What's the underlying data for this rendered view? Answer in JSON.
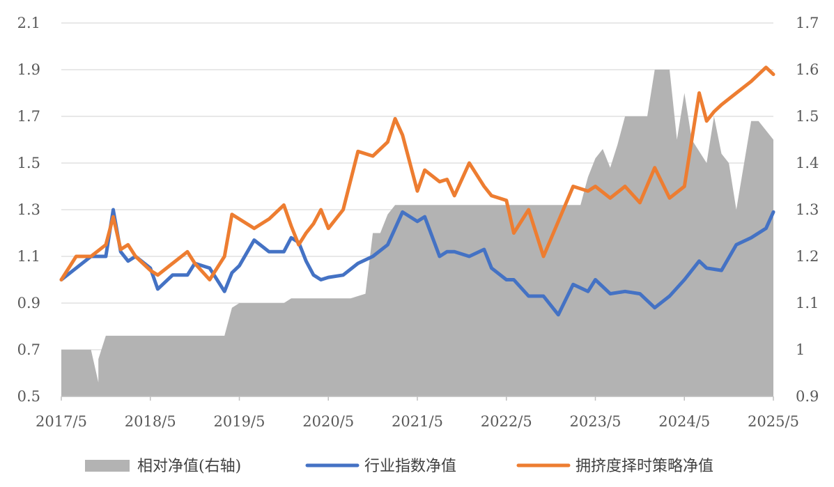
{
  "chart_data": {
    "type": "line",
    "title": "",
    "x_ticks": [
      "2017/5",
      "2018/5",
      "2019/5",
      "2020/5",
      "2021/5",
      "2022/5",
      "2023/5",
      "2024/5",
      "2025/5"
    ],
    "y_left": {
      "lim": [
        0.5,
        2.1
      ],
      "ticks": [
        "0.5",
        "0.7",
        "0.9",
        "1.1",
        "1.3",
        "1.5",
        "1.7",
        "1.9",
        "2.1"
      ]
    },
    "y_right": {
      "lim": [
        0.9,
        1.7
      ],
      "ticks": [
        "0.9",
        "1",
        "1.1",
        "1.2",
        "1.3",
        "1.4",
        "1.5",
        "1.6",
        "1.7"
      ]
    },
    "grid": true,
    "legend_position": "bottom",
    "colors": {
      "relative": "#b3b3b3",
      "industry": "#4472c4",
      "strategy": "#ed7d31"
    },
    "series": [
      {
        "name": "相对净值(右轴)",
        "axis": "right",
        "style": "area",
        "x": [
          "2017/5",
          "2017/9",
          "2017/10",
          "2017/10",
          "2017/11",
          "2018/1",
          "2018/2",
          "2018/3",
          "2018/6",
          "2018/9",
          "2019/1",
          "2019/3",
          "2019/4",
          "2019/5",
          "2019/8",
          "2019/9",
          "2019/10",
          "2019/11",
          "2019/12",
          "2020/2",
          "2020/4",
          "2020/5",
          "2020/8",
          "2020/10",
          "2020/11",
          "2020/12",
          "2021/1",
          "2021/2",
          "2021/5",
          "2021/8",
          "2021/11",
          "2022/2",
          "2022/5",
          "2022/8",
          "2022/11",
          "2023/2",
          "2023/3",
          "2023/4",
          "2023/5",
          "2023/6",
          "2023/7",
          "2023/8",
          "2023/9",
          "2023/10",
          "2023/11",
          "2023/12",
          "2024/1",
          "2024/2",
          "2024/3",
          "2024/4",
          "2024/5",
          "2024/6",
          "2024/8",
          "2024/9",
          "2024/10",
          "2024/11",
          "2024/12",
          "2025/2",
          "2025/3",
          "2025/5"
        ],
        "values": [
          1.0,
          1.0,
          0.93,
          0.98,
          1.03,
          1.03,
          1.03,
          1.03,
          1.03,
          1.03,
          1.03,
          1.03,
          1.09,
          1.1,
          1.1,
          1.1,
          1.1,
          1.1,
          1.11,
          1.11,
          1.11,
          1.11,
          1.11,
          1.12,
          1.25,
          1.25,
          1.29,
          1.31,
          1.31,
          1.31,
          1.31,
          1.31,
          1.31,
          1.31,
          1.31,
          1.31,
          1.31,
          1.37,
          1.41,
          1.43,
          1.39,
          1.44,
          1.5,
          1.5,
          1.5,
          1.5,
          1.6,
          1.6,
          1.6,
          1.45,
          1.55,
          1.45,
          1.4,
          1.5,
          1.42,
          1.4,
          1.3,
          1.49,
          1.49,
          1.45
        ]
      },
      {
        "name": "行业指数净值",
        "axis": "left",
        "style": "line",
        "x": [
          "2017/5",
          "2017/7",
          "2017/9",
          "2017/11",
          "2017/12",
          "2018/1",
          "2018/2",
          "2018/3",
          "2018/5",
          "2018/6",
          "2018/8",
          "2018/10",
          "2018/11",
          "2019/1",
          "2019/3",
          "2019/4",
          "2019/5",
          "2019/7",
          "2019/9",
          "2019/11",
          "2019/12",
          "2020/1",
          "2020/2",
          "2020/3",
          "2020/4",
          "2020/5",
          "2020/7",
          "2020/9",
          "2020/11",
          "2021/1",
          "2021/2",
          "2021/3",
          "2021/5",
          "2021/6",
          "2021/8",
          "2021/9",
          "2021/10",
          "2021/12",
          "2022/2",
          "2022/3",
          "2022/5",
          "2022/6",
          "2022/8",
          "2022/10",
          "2022/12",
          "2023/2",
          "2023/4",
          "2023/5",
          "2023/7",
          "2023/9",
          "2023/11",
          "2024/1",
          "2024/3",
          "2024/5",
          "2024/7",
          "2024/8",
          "2024/10",
          "2024/12",
          "2025/2",
          "2025/4",
          "2025/5"
        ],
        "values": [
          1.0,
          1.05,
          1.1,
          1.1,
          1.3,
          1.12,
          1.08,
          1.1,
          1.05,
          0.96,
          1.02,
          1.02,
          1.07,
          1.05,
          0.95,
          1.03,
          1.06,
          1.17,
          1.12,
          1.12,
          1.18,
          1.16,
          1.08,
          1.02,
          1.0,
          1.01,
          1.02,
          1.07,
          1.1,
          1.15,
          1.22,
          1.29,
          1.25,
          1.27,
          1.1,
          1.12,
          1.12,
          1.1,
          1.13,
          1.05,
          1.0,
          1.0,
          0.93,
          0.93,
          0.85,
          0.98,
          0.95,
          1.0,
          0.94,
          0.95,
          0.94,
          0.88,
          0.93,
          1.0,
          1.08,
          1.05,
          1.04,
          1.15,
          1.18,
          1.22,
          1.29
        ]
      },
      {
        "name": "拥挤度择时策略净值",
        "axis": "left",
        "style": "line",
        "x": [
          "2017/5",
          "2017/7",
          "2017/9",
          "2017/11",
          "2017/12",
          "2018/1",
          "2018/2",
          "2018/3",
          "2018/5",
          "2018/6",
          "2018/8",
          "2018/10",
          "2018/11",
          "2019/1",
          "2019/3",
          "2019/4",
          "2019/5",
          "2019/7",
          "2019/9",
          "2019/11",
          "2019/12",
          "2020/1",
          "2020/2",
          "2020/3",
          "2020/4",
          "2020/5",
          "2020/7",
          "2020/9",
          "2020/11",
          "2021/1",
          "2021/2",
          "2021/3",
          "2021/5",
          "2021/6",
          "2021/8",
          "2021/9",
          "2021/10",
          "2021/12",
          "2022/2",
          "2022/3",
          "2022/5",
          "2022/6",
          "2022/8",
          "2022/10",
          "2022/12",
          "2023/2",
          "2023/4",
          "2023/5",
          "2023/7",
          "2023/9",
          "2023/11",
          "2024/1",
          "2024/3",
          "2024/5",
          "2024/7",
          "2024/8",
          "2024/9",
          "2024/10",
          "2024/12",
          "2025/2",
          "2025/4",
          "2025/5"
        ],
        "values": [
          1.0,
          1.1,
          1.1,
          1.15,
          1.27,
          1.13,
          1.15,
          1.1,
          1.04,
          1.02,
          1.07,
          1.12,
          1.07,
          1.0,
          1.1,
          1.28,
          1.26,
          1.22,
          1.26,
          1.32,
          1.23,
          1.15,
          1.2,
          1.24,
          1.3,
          1.22,
          1.3,
          1.55,
          1.53,
          1.59,
          1.69,
          1.62,
          1.38,
          1.47,
          1.42,
          1.43,
          1.36,
          1.5,
          1.4,
          1.36,
          1.34,
          1.2,
          1.3,
          1.1,
          1.25,
          1.4,
          1.38,
          1.4,
          1.35,
          1.4,
          1.33,
          1.48,
          1.35,
          1.4,
          1.8,
          1.68,
          1.72,
          1.75,
          1.8,
          1.85,
          1.91,
          1.88
        ]
      }
    ],
    "legend": [
      {
        "label": "相对净值(右轴)",
        "style": "area"
      },
      {
        "label": "行业指数净值",
        "style": "line"
      },
      {
        "label": "拥挤度择时策略净值",
        "style": "line"
      }
    ]
  }
}
